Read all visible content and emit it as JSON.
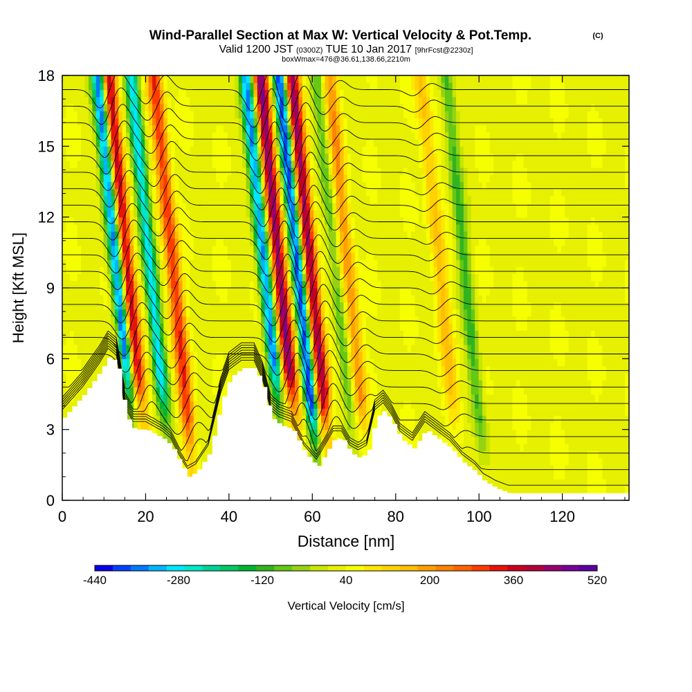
{
  "chart_data": {
    "type": "heatmap",
    "title": "Wind-Parallel Section at Max W: Vertical Velocity & Pot.Temp.",
    "title_mark": "(C)",
    "subtitle_prefix": "Valid 1200 JST",
    "subtitle_utc": "(0300Z)",
    "subtitle_date": "TUE 10 Jan 2017",
    "subtitle_fcst": "[9hrFcst@2230z]",
    "subtitle2": "boxWmax=476@36.61,138.66,2210m",
    "xlabel": "Distance [nm]",
    "ylabel": "Height [Kft MSL]",
    "xlim": [
      0,
      136
    ],
    "ylim": [
      0,
      18
    ],
    "x_ticks": [
      "0",
      "20",
      "40",
      "60",
      "80",
      "100",
      "120"
    ],
    "y_ticks": [
      "0",
      "3",
      "6",
      "9",
      "12",
      "15",
      "18"
    ],
    "colorbar": {
      "label": "Vertical Velocity [cm/s]",
      "tick_labels": [
        "-440",
        "-280",
        "-120",
        "40",
        "200",
        "360",
        "520"
      ],
      "colors": [
        "#0a00e6",
        "#0041ff",
        "#0078ff",
        "#00b4ff",
        "#00e6ff",
        "#00e6c8",
        "#00d296",
        "#00c864",
        "#00b432",
        "#32b41e",
        "#64c814",
        "#96d214",
        "#c8e600",
        "#e6f000",
        "#f5ff00",
        "#ffe600",
        "#ffd200",
        "#ffbe00",
        "#ffa000",
        "#ff8200",
        "#ff6400",
        "#ff3c00",
        "#e6140a",
        "#c8001e",
        "#b4003c",
        "#96006e",
        "#780096",
        "#5a00a0"
      ]
    },
    "updraft_axes": [
      {
        "x": 16.0,
        "peak": 360
      },
      {
        "x": 27.0,
        "peak": 280
      },
      {
        "x": 52.5,
        "peak": 420
      },
      {
        "x": 60.0,
        "peak": 400
      },
      {
        "x": 69.0,
        "peak": 180
      },
      {
        "x": 91.0,
        "peak": 120
      }
    ],
    "downdraft_axes": [
      {
        "x": 13.5,
        "peak": -420
      },
      {
        "x": 21.5,
        "peak": -320
      },
      {
        "x": 49.0,
        "peak": -380
      },
      {
        "x": 57.0,
        "peak": -440
      },
      {
        "x": 66.0,
        "peak": -120
      },
      {
        "x": 97.0,
        "peak": -140
      }
    ],
    "terrain_profile": [
      [
        0,
        3.5
      ],
      [
        5,
        4.5
      ],
      [
        9,
        5.5
      ],
      [
        11,
        6.1
      ],
      [
        13,
        5.8
      ],
      [
        15,
        3.6
      ],
      [
        17,
        3.0
      ],
      [
        20,
        3.0
      ],
      [
        24,
        2.6
      ],
      [
        26,
        2.3
      ],
      [
        28,
        1.6
      ],
      [
        30,
        1.0
      ],
      [
        32,
        1.2
      ],
      [
        35,
        2.0
      ],
      [
        38,
        4.2
      ],
      [
        40,
        5.2
      ],
      [
        43,
        5.6
      ],
      [
        46,
        5.6
      ],
      [
        48,
        4.8
      ],
      [
        50,
        3.5
      ],
      [
        52,
        3.2
      ],
      [
        55,
        3.0
      ],
      [
        58,
        2.0
      ],
      [
        61,
        1.4
      ],
      [
        63,
        2.0
      ],
      [
        65,
        2.6
      ],
      [
        67,
        2.6
      ],
      [
        69,
        2.0
      ],
      [
        71,
        1.8
      ],
      [
        73,
        2.0
      ],
      [
        75,
        3.5
      ],
      [
        77,
        3.8
      ],
      [
        79,
        3.3
      ],
      [
        81,
        2.6
      ],
      [
        84,
        2.2
      ],
      [
        87,
        3.0
      ],
      [
        90,
        2.6
      ],
      [
        93,
        2.2
      ],
      [
        96,
        1.6
      ],
      [
        99,
        1.2
      ],
      [
        101,
        0.8
      ],
      [
        104,
        0.5
      ],
      [
        107,
        0.3
      ],
      [
        136,
        0.3
      ]
    ],
    "isentrope_levels": [
      0.6,
      1.3,
      2.0,
      2.7,
      3.4,
      4.1,
      4.8,
      5.5,
      6.2,
      6.9,
      7.6,
      8.3,
      9.0,
      9.7,
      10.4,
      11.1,
      11.8,
      12.5,
      13.2,
      13.9,
      14.6,
      15.3,
      16.0,
      16.7,
      17.4
    ]
  }
}
